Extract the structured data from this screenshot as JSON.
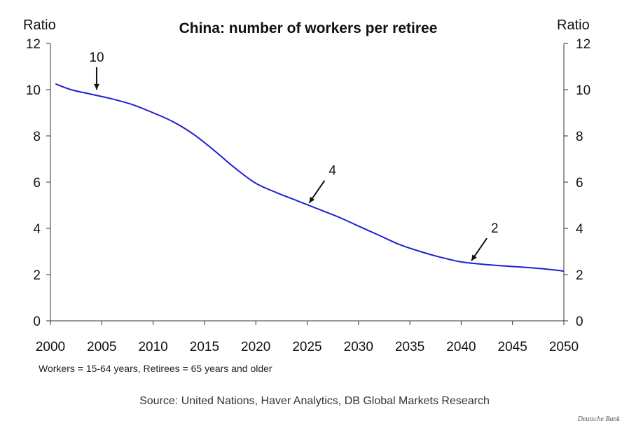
{
  "chart_data": {
    "type": "line",
    "title": "China: number of workers per retiree",
    "ylabel_left": "Ratio",
    "ylabel_right": "Ratio",
    "xlabel": "",
    "xlim": [
      2000,
      2050
    ],
    "ylim": [
      0,
      12
    ],
    "x_ticks": [
      2000,
      2005,
      2010,
      2015,
      2020,
      2025,
      2030,
      2035,
      2040,
      2045,
      2050
    ],
    "y_ticks": [
      0,
      2,
      4,
      6,
      8,
      10,
      12
    ],
    "grid": false,
    "legend": "none",
    "series": [
      {
        "color": "#1f1fd6",
        "x": [
          2000.5,
          2002,
          2004,
          2006,
          2008,
          2010,
          2012,
          2014,
          2016,
          2018,
          2020,
          2022,
          2024,
          2026,
          2028,
          2030,
          2032,
          2034,
          2036,
          2038,
          2040,
          2042,
          2044,
          2046,
          2048,
          2050
        ],
        "y": [
          10.25,
          10.0,
          9.8,
          9.6,
          9.35,
          9.0,
          8.6,
          8.05,
          7.35,
          6.6,
          5.95,
          5.55,
          5.2,
          4.85,
          4.5,
          4.1,
          3.7,
          3.3,
          3.0,
          2.75,
          2.55,
          2.45,
          2.38,
          2.32,
          2.25,
          2.15
        ]
      }
    ],
    "annotations": [
      {
        "text": "10",
        "x": 2004.5,
        "y": 10.0
      },
      {
        "text": "4",
        "x": 2025.2,
        "y": 5.1
      },
      {
        "text": "2",
        "x": 2041.0,
        "y": 2.6
      }
    ],
    "footnote": "Workers = 15-64 years, Retirees = 65 years and older",
    "source": "Source: United Nations, Haver Analytics, DB Global Markets Research",
    "brand": "Deutsche Bank"
  }
}
